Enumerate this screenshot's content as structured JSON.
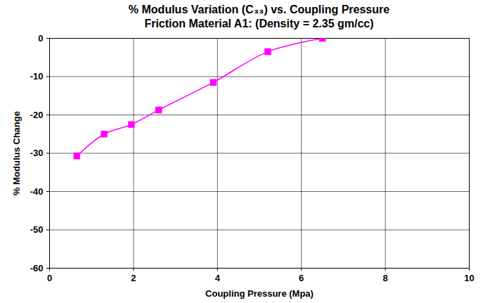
{
  "chart_data": {
    "type": "line",
    "title": "% Modulus Variation (C₃₃) vs. Coupling Pressure",
    "subtitle": "Friction Material A1: (Density = 2.35 gm/cc)",
    "x_label": "Coupling Pressure (Mpa)",
    "y_label": "% Modulus Change",
    "x": [
      0.65,
      1.3,
      1.95,
      2.6,
      3.9,
      5.2,
      6.5
    ],
    "series": [
      {
        "name": "A1",
        "color": "#ff00ff",
        "marker": "square",
        "line_style": "solid",
        "values": [
          -30.7,
          -25,
          -22.5,
          -18.7,
          -11.5,
          -3.5,
          0
        ]
      }
    ],
    "xlim": [
      0,
      10
    ],
    "xticks": [
      0,
      2,
      4,
      6,
      8,
      10
    ],
    "ylim": [
      -60,
      0
    ],
    "yticks": [
      -60,
      -50,
      -40,
      -30,
      -20,
      -10,
      0
    ],
    "grid": true
  }
}
